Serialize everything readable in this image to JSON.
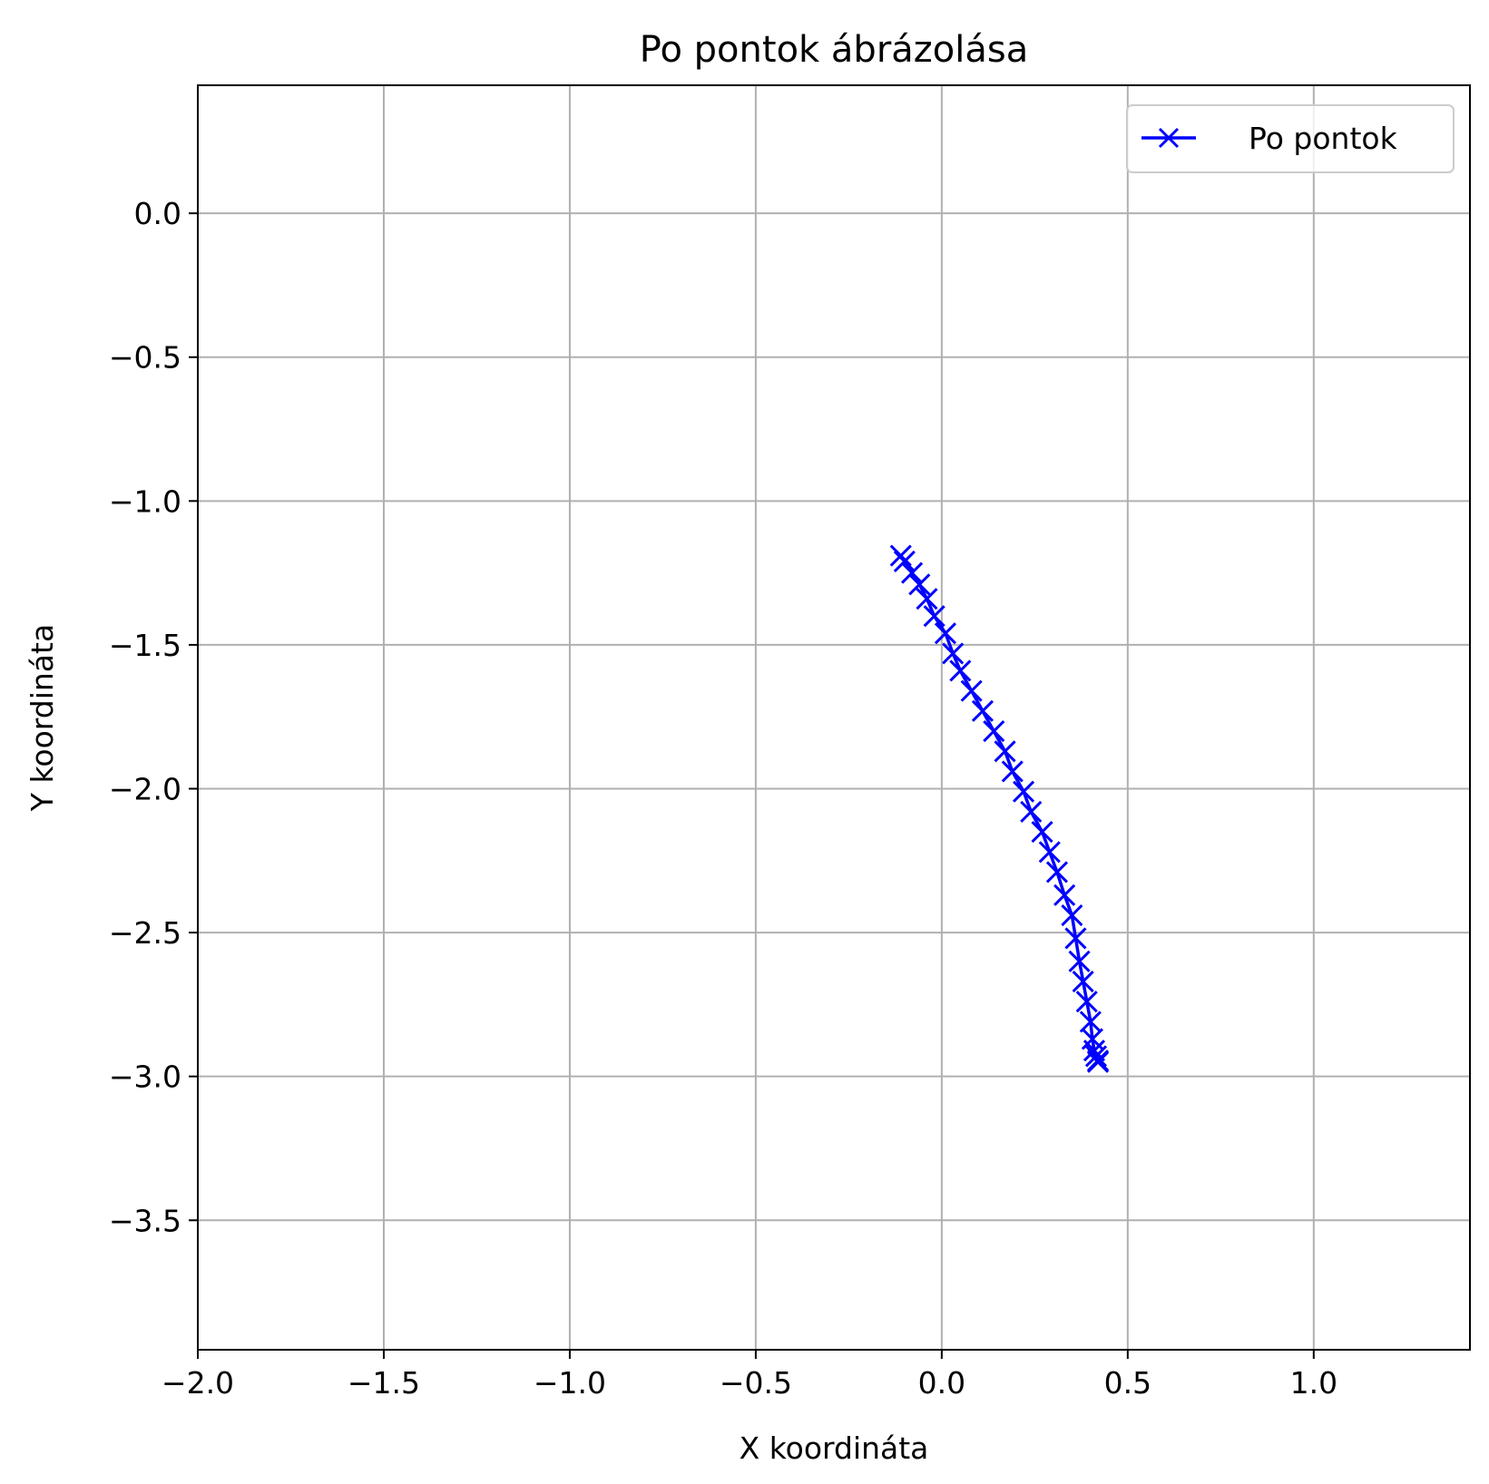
{
  "chart_data": {
    "type": "line",
    "title": "Po pontok ábrázolása",
    "xlabel": "X koordináta",
    "ylabel": "Y koordináta",
    "xlim": [
      -2.0,
      1.42
    ],
    "ylim": [
      -3.95,
      0.445
    ],
    "xticks": [
      -2.0,
      -1.5,
      -1.0,
      -0.5,
      0.0,
      0.5,
      1.0
    ],
    "xtick_labels": [
      "−2.0",
      "−1.5",
      "−1.0",
      "−0.5",
      "0.0",
      "0.5",
      "1.0"
    ],
    "yticks": [
      0.0,
      -0.5,
      -1.0,
      -1.5,
      -2.0,
      -2.5,
      -3.0,
      -3.5
    ],
    "ytick_labels": [
      "0.0",
      "−0.5",
      "−1.0",
      "−1.5",
      "−2.0",
      "−2.5",
      "−3.0",
      "−3.5"
    ],
    "grid": true,
    "legend_position": "top-right",
    "series": [
      {
        "name": "Po pontok",
        "color": "#0000ff",
        "marker": "x",
        "points": [
          [
            -0.11,
            -1.19
          ],
          [
            -0.1,
            -1.21
          ],
          [
            -0.08,
            -1.25
          ],
          [
            -0.06,
            -1.29
          ],
          [
            -0.04,
            -1.34
          ],
          [
            -0.02,
            -1.4
          ],
          [
            0.01,
            -1.46
          ],
          [
            0.03,
            -1.53
          ],
          [
            0.05,
            -1.59
          ],
          [
            0.08,
            -1.66
          ],
          [
            0.11,
            -1.73
          ],
          [
            0.14,
            -1.8
          ],
          [
            0.17,
            -1.87
          ],
          [
            0.19,
            -1.94
          ],
          [
            0.22,
            -2.01
          ],
          [
            0.24,
            -2.08
          ],
          [
            0.27,
            -2.15
          ],
          [
            0.29,
            -2.22
          ],
          [
            0.31,
            -2.29
          ],
          [
            0.33,
            -2.37
          ],
          [
            0.35,
            -2.44
          ],
          [
            0.36,
            -2.52
          ],
          [
            0.37,
            -2.6
          ],
          [
            0.38,
            -2.67
          ],
          [
            0.39,
            -2.74
          ],
          [
            0.4,
            -2.81
          ],
          [
            0.405,
            -2.87
          ],
          [
            0.41,
            -2.91
          ],
          [
            0.415,
            -2.93
          ],
          [
            0.42,
            -2.945
          ],
          [
            0.42,
            -2.95
          ]
        ]
      }
    ]
  }
}
